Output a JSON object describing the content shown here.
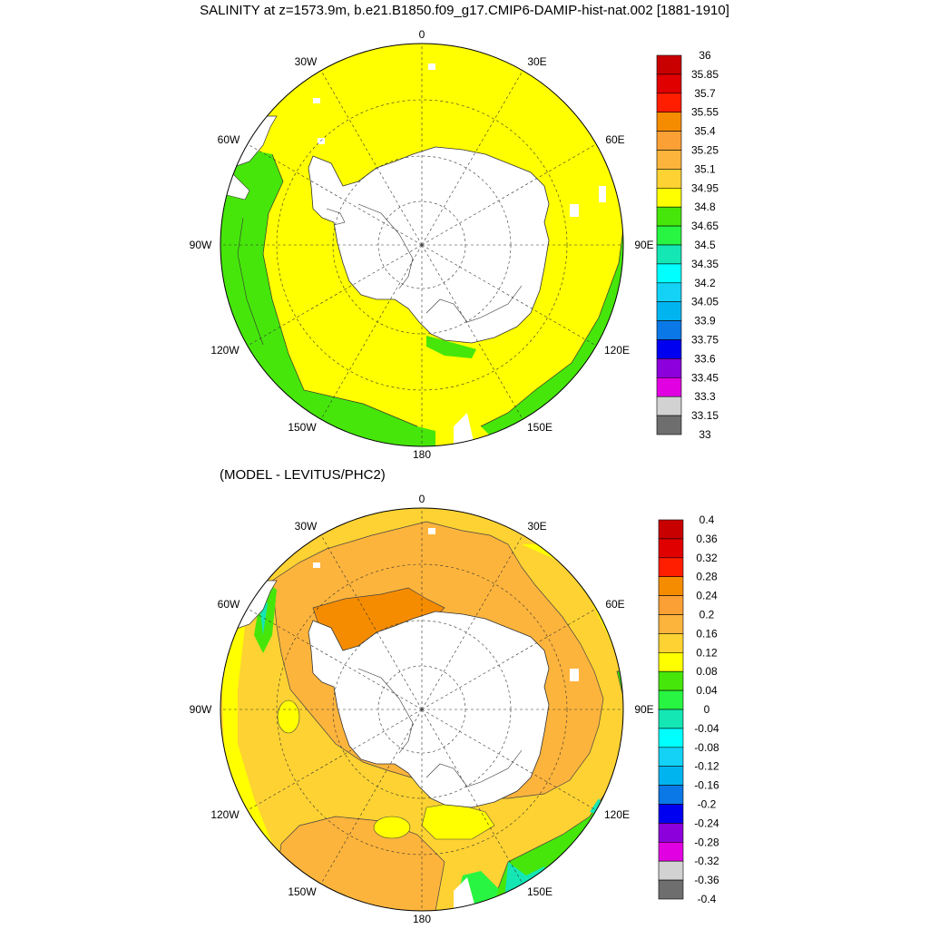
{
  "top": {
    "title": "SALINITY at z=1573.9m, b.e21.B1850.f09_g17.CMIP6-DAMIP-hist-nat.002 [1881-1910]",
    "lon_labels": [
      "0",
      "30E",
      "60E",
      "90E",
      "120E",
      "150E",
      "180",
      "150W",
      "120W",
      "90W",
      "60W",
      "30W"
    ],
    "colorbar": {
      "labels": [
        "36",
        "35.85",
        "35.7",
        "35.55",
        "35.4",
        "35.25",
        "35.1",
        "34.95",
        "34.8",
        "34.65",
        "34.5",
        "34.35",
        "34.2",
        "34.05",
        "33.9",
        "33.75",
        "33.6",
        "33.45",
        "33.3",
        "33.15",
        "33"
      ],
      "colors": [
        "#c80000",
        "#e00000",
        "#ff1e00",
        "#f58c00",
        "#fba035",
        "#fdb43c",
        "#fdd232",
        "#ffff00",
        "#46e60a",
        "#28f541",
        "#14e6b4",
        "#00ffff",
        "#14d2f5",
        "#00b4f0",
        "#0a78e6",
        "#0000f0",
        "#8c00dc",
        "#e100e1",
        "#d2d2d2",
        "#6e6e6e"
      ]
    }
  },
  "bottom": {
    "title": "(MODEL - LEVITUS/PHC2)",
    "lon_labels": [
      "0",
      "30E",
      "60E",
      "90E",
      "120E",
      "150E",
      "180",
      "150W",
      "120W",
      "90W",
      "60W",
      "30W"
    ],
    "colorbar": {
      "labels": [
        "0.4",
        "0.36",
        "0.32",
        "0.28",
        "0.24",
        "0.2",
        "0.16",
        "0.12",
        "0.08",
        "0.04",
        "0",
        "-0.04",
        "-0.08",
        "-0.12",
        "-0.16",
        "-0.2",
        "-0.24",
        "-0.28",
        "-0.32",
        "-0.36",
        "-0.4"
      ],
      "colors": [
        "#c80000",
        "#e00000",
        "#ff1e00",
        "#f58c00",
        "#fba035",
        "#fdb43c",
        "#fdd232",
        "#ffff00",
        "#46e60a",
        "#28f541",
        "#14e6b4",
        "#00ffff",
        "#14d2f5",
        "#00b4f0",
        "#0a78e6",
        "#0000f0",
        "#8c00dc",
        "#e100e1",
        "#d2d2d2",
        "#6e6e6e"
      ]
    }
  },
  "colors": {
    "ocean_top": "#ffff00",
    "coast_green_top": "#46e60a",
    "ocean_bottom": "#fdd232",
    "anomaly_orange": "#fdb43c",
    "anomaly_dark": "#f7a030",
    "land": "#ffffff"
  }
}
